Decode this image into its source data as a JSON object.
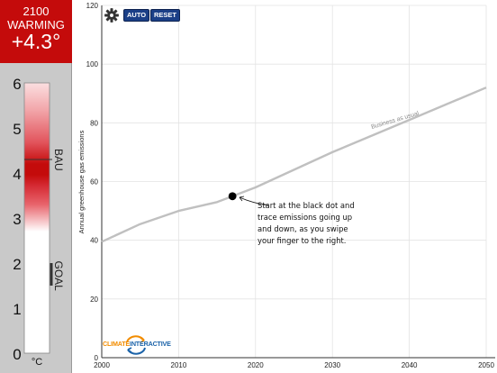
{
  "warming": {
    "year": "2100",
    "label": "WARMING",
    "value": "+4.3°"
  },
  "thermometer": {
    "ticks": [
      "6",
      "5",
      "4",
      "3",
      "2",
      "1",
      "0"
    ],
    "unit": "°C",
    "bau_label": "BAU",
    "bau_value": 4.3,
    "goal_label": "GOAL",
    "goal_range": [
      1.5,
      2.0
    ],
    "colors": {
      "hot": "#c40b0b",
      "cool": "#ffffff",
      "marker": "#333333"
    }
  },
  "toolbar": {
    "gear_icon": "gear-icon",
    "auto_label": "AUTO",
    "reset_label": "RESET",
    "button_color": "#1b3f87"
  },
  "chart_data": {
    "type": "line",
    "title": "",
    "xlabel": "",
    "ylabel": "Annual greenhouse gas emissions",
    "xlim": [
      2000,
      2050
    ],
    "ylim": [
      0,
      120
    ],
    "xticks": [
      "2000",
      "2010",
      "2020",
      "2030",
      "2040",
      "2050"
    ],
    "yticks": [
      "0",
      "20",
      "40",
      "60",
      "80",
      "100",
      "120"
    ],
    "grid": true,
    "series": [
      {
        "name": "Business as usual",
        "color": "#c0c0c0",
        "x": [
          2000,
          2005,
          2010,
          2015,
          2017,
          2020,
          2030,
          2040,
          2050
        ],
        "y": [
          39.5,
          45.5,
          50,
          53,
          55,
          58,
          70,
          81,
          92
        ]
      }
    ],
    "dot": {
      "x": 2017,
      "y": 55
    },
    "annotation": "Start at the black dot and trace emissions going up and down, as you swipe your finger to the right."
  },
  "logo": {
    "word1": "CLIMATE",
    "word2": "INTERACTIVE",
    "icon": "circular-arrows-icon",
    "colors": [
      "#f28c00",
      "#1b63a9"
    ]
  }
}
